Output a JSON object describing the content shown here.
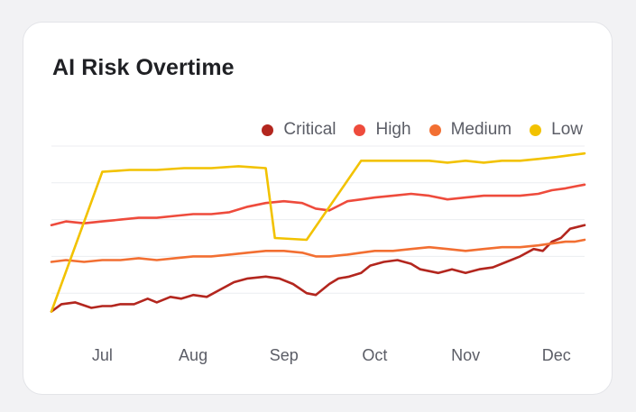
{
  "card": {
    "title": "AI Risk Overtime"
  },
  "colors": {
    "critical": "#b3261e",
    "high": "#ee4b3c",
    "medium": "#f26f32",
    "low": "#f2c200",
    "grid": "#eceef1"
  },
  "chart_data": {
    "type": "line",
    "title": "AI Risk Overtime",
    "xlabel": "",
    "ylabel": "",
    "x_labels": [
      "Jul",
      "Aug",
      "Sep",
      "Oct",
      "Nov",
      "Dec"
    ],
    "x_range": [
      0.44,
      6.31
    ],
    "ylim": [
      0,
      100
    ],
    "grid": true,
    "legend_position": "top-right",
    "series": [
      {
        "name": "Critical",
        "color": "#b3261e",
        "x": [
          0.44,
          0.55,
          0.7,
          0.88,
          1.0,
          1.1,
          1.2,
          1.35,
          1.5,
          1.6,
          1.75,
          1.87,
          2.0,
          2.15,
          2.3,
          2.45,
          2.6,
          2.8,
          2.95,
          3.1,
          3.25,
          3.35,
          3.5,
          3.6,
          3.72,
          3.85,
          3.95,
          4.1,
          4.25,
          4.4,
          4.5,
          4.7,
          4.85,
          5.0,
          5.15,
          5.3,
          5.45,
          5.6,
          5.75,
          5.85,
          5.95,
          6.05,
          6.15,
          6.31
        ],
        "values": [
          10,
          14,
          15,
          12,
          13,
          13,
          14,
          14,
          17,
          15,
          18,
          17,
          19,
          18,
          22,
          26,
          28,
          29,
          28,
          25,
          20,
          19,
          25,
          28,
          29,
          31,
          35,
          37,
          38,
          36,
          33,
          31,
          33,
          31,
          33,
          34,
          37,
          40,
          44,
          43,
          48,
          50,
          55,
          57
        ]
      },
      {
        "name": "High",
        "color": "#ee4b3c",
        "x": [
          0.44,
          0.6,
          0.8,
          1.0,
          1.2,
          1.4,
          1.6,
          1.8,
          2.0,
          2.2,
          2.4,
          2.6,
          2.8,
          3.0,
          3.2,
          3.35,
          3.5,
          3.7,
          3.85,
          4.0,
          4.2,
          4.4,
          4.6,
          4.8,
          5.0,
          5.2,
          5.4,
          5.6,
          5.8,
          5.95,
          6.1,
          6.2,
          6.31
        ],
        "values": [
          57,
          59,
          58,
          59,
          60,
          61,
          61,
          62,
          63,
          63,
          64,
          67,
          69,
          70,
          69,
          66,
          65,
          70,
          71,
          72,
          73,
          74,
          73,
          71,
          72,
          73,
          73,
          73,
          74,
          76,
          77,
          78,
          79
        ]
      },
      {
        "name": "Medium",
        "color": "#f26f32",
        "x": [
          0.44,
          0.6,
          0.8,
          1.0,
          1.2,
          1.4,
          1.6,
          1.8,
          2.0,
          2.2,
          2.4,
          2.6,
          2.8,
          3.0,
          3.2,
          3.35,
          3.5,
          3.7,
          3.85,
          4.0,
          4.2,
          4.4,
          4.6,
          4.8,
          5.0,
          5.2,
          5.4,
          5.6,
          5.8,
          5.95,
          6.1,
          6.2,
          6.31
        ],
        "values": [
          37,
          38,
          37,
          38,
          38,
          39,
          38,
          39,
          40,
          40,
          41,
          42,
          43,
          43,
          42,
          40,
          40,
          41,
          42,
          43,
          43,
          44,
          45,
          44,
          43,
          44,
          45,
          45,
          46,
          47,
          48,
          48,
          49
        ]
      },
      {
        "name": "Low",
        "color": "#f2c200",
        "x": [
          0.44,
          1.0,
          1.3,
          1.6,
          1.9,
          2.2,
          2.5,
          2.8,
          2.9,
          3.25,
          3.85,
          4.6,
          4.8,
          5.0,
          5.2,
          5.4,
          5.6,
          5.8,
          6.0,
          6.15,
          6.31
        ],
        "values": [
          10,
          86,
          87,
          87,
          88,
          88,
          89,
          88,
          50,
          49,
          92,
          92,
          91,
          92,
          91,
          92,
          92,
          93,
          94,
          95,
          96
        ]
      }
    ]
  }
}
